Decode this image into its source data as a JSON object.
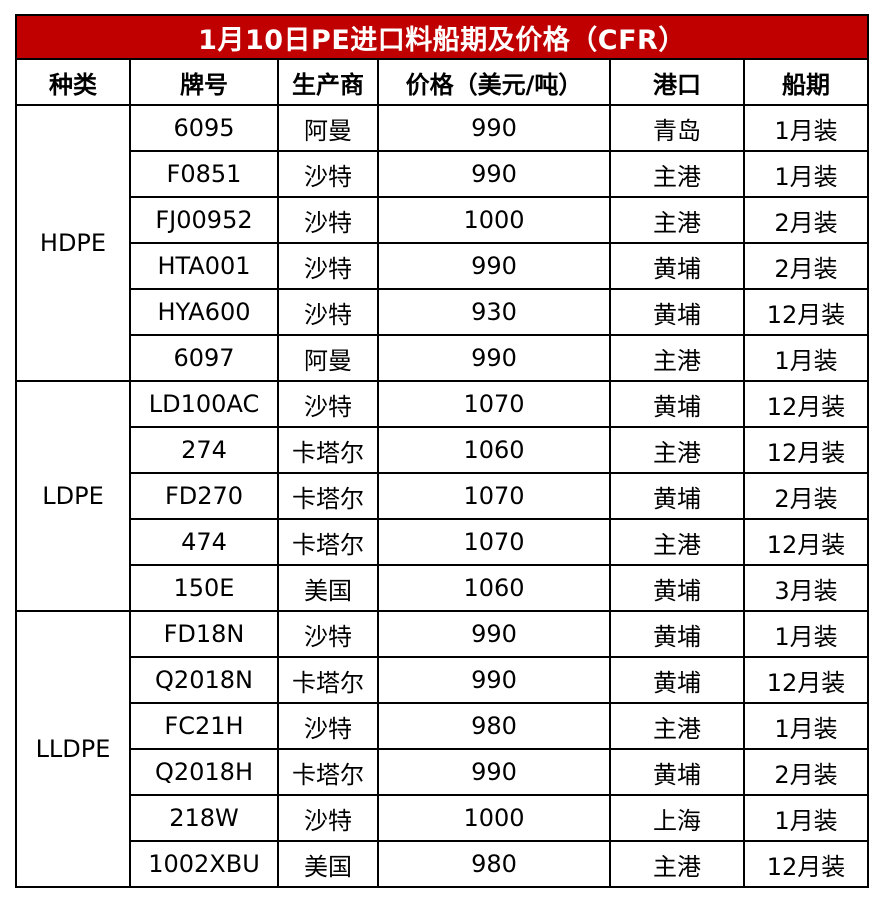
{
  "title": "1月10日PE进口料船期及价格（CFR）",
  "headers": [
    "种类",
    "牌号",
    "生产商",
    "价格（美元/吨）",
    "港口",
    "船期"
  ],
  "groups": [
    {
      "type": "HDPE",
      "rows": [
        {
          "grade": "6095",
          "producer": "阿曼",
          "price": "990",
          "port": "青岛",
          "shipment": "1月装"
        },
        {
          "grade": "F0851",
          "producer": "沙特",
          "price": "990",
          "port": "主港",
          "shipment": "1月装"
        },
        {
          "grade": "FJ00952",
          "producer": "沙特",
          "price": "1000",
          "port": "主港",
          "shipment": "2月装"
        },
        {
          "grade": "HTA001",
          "producer": "沙特",
          "price": "990",
          "port": "黄埔",
          "shipment": "2月装"
        },
        {
          "grade": "HYA600",
          "producer": "沙特",
          "price": "930",
          "port": "黄埔",
          "shipment": "12月装"
        },
        {
          "grade": "6097",
          "producer": "阿曼",
          "price": "990",
          "port": "主港",
          "shipment": "1月装"
        }
      ]
    },
    {
      "type": "LDPE",
      "rows": [
        {
          "grade": "LD100AC",
          "producer": "沙特",
          "price": "1070",
          "port": "黄埔",
          "shipment": "12月装"
        },
        {
          "grade": "274",
          "producer": "卡塔尔",
          "price": "1060",
          "port": "主港",
          "shipment": "12月装"
        },
        {
          "grade": "FD270",
          "producer": "卡塔尔",
          "price": "1070",
          "port": "黄埔",
          "shipment": "2月装"
        },
        {
          "grade": "474",
          "producer": "卡塔尔",
          "price": "1070",
          "port": "主港",
          "shipment": "12月装"
        },
        {
          "grade": "150E",
          "producer": "美国",
          "price": "1060",
          "port": "黄埔",
          "shipment": "3月装"
        }
      ]
    },
    {
      "type": "LLDPE",
      "rows": [
        {
          "grade": "FD18N",
          "producer": "沙特",
          "price": "990",
          "port": "黄埔",
          "shipment": "1月装"
        },
        {
          "grade": "Q2018N",
          "producer": "卡塔尔",
          "price": "990",
          "port": "黄埔",
          "shipment": "12月装"
        },
        {
          "grade": "FC21H",
          "producer": "沙特",
          "price": "980",
          "port": "主港",
          "shipment": "1月装"
        },
        {
          "grade": "Q2018H",
          "producer": "卡塔尔",
          "price": "990",
          "port": "黄埔",
          "shipment": "2月装"
        },
        {
          "grade": "218W",
          "producer": "沙特",
          "price": "1000",
          "port": "上海",
          "shipment": "1月装"
        },
        {
          "grade": "1002XBU",
          "producer": "美国",
          "price": "980",
          "port": "主港",
          "shipment": "12月装"
        }
      ]
    }
  ],
  "colors": {
    "title_background": "#c00000",
    "title_text": "#ffffff",
    "border": "#000000"
  }
}
